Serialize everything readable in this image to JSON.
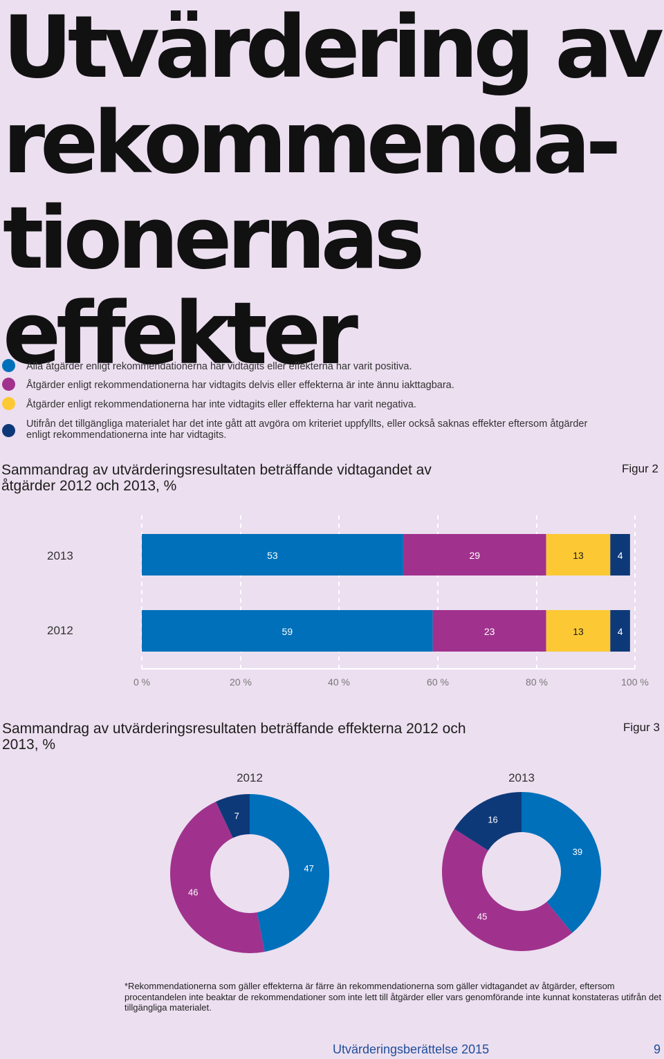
{
  "page": {
    "title_lines": [
      "Utvärdering av",
      "rekommenda-",
      "tionernas",
      "effekter"
    ],
    "footer_title": "Utvärderingsberättelse 2015",
    "page_number": "9"
  },
  "colors": {
    "positive": "#0070ba",
    "partial": "#a0328d",
    "negative": "#fcc934",
    "undetermined": "#0e3979",
    "background": "#ecdff0"
  },
  "legend": [
    {
      "key": "positive",
      "color": "#0070ba",
      "text": "Alla åtgärder enligt rekommendationerna har vidtagits eller effekterna har varit positiva."
    },
    {
      "key": "partial",
      "color": "#a0328d",
      "text": "Åtgärder enligt rekommendationerna har vidtagits delvis eller effekterna är inte ännu iakttagbara."
    },
    {
      "key": "negative",
      "color": "#fcc934",
      "text": "Åtgärder enligt rekommendationerna har inte vidtagits eller effekterna har varit negativa."
    },
    {
      "key": "undetermined",
      "color": "#0e3979",
      "text": "Utifrån det tillgängliga materialet har det inte gått att avgöra om kriteriet uppfyllts, eller också saknas effekter eftersom åtgärder enligt rekommendationerna inte har vidtagits."
    }
  ],
  "figure2": {
    "heading": "Sammandrag av utvärderingsresultaten beträffande vidtagandet av åtgärder 2012 och 2013, %",
    "label": "Figur 2"
  },
  "figure3": {
    "heading": "Sammandrag av utvärderingsresultaten beträffande effekterna 2012 och 2013, %",
    "label": "Figur 3"
  },
  "chart_data": [
    {
      "type": "bar",
      "orientation": "horizontal",
      "stacked": true,
      "title": "Sammandrag av utvärderingsresultaten beträffande vidtagandet av åtgärder 2012 och 2013, %",
      "categories": [
        "2013",
        "2012"
      ],
      "series": [
        {
          "name": "Alla åtgärder enligt rekommendationerna har vidtagits eller effekterna har varit positiva.",
          "color": "#0070ba",
          "values": [
            53,
            59
          ]
        },
        {
          "name": "Åtgärder enligt rekommendationerna har vidtagits delvis eller effekterna är inte ännu iakttagbara.",
          "color": "#a0328d",
          "values": [
            29,
            23
          ]
        },
        {
          "name": "Åtgärder enligt rekommendationerna har inte vidtagits eller effekterna har varit negativa.",
          "color": "#fcc934",
          "values": [
            13,
            13
          ]
        },
        {
          "name": "Utifrån det tillgängliga materialet har det inte gått att avgöra om kriteriet uppfyllts.",
          "color": "#0e3979",
          "values": [
            4,
            4
          ]
        }
      ],
      "xlim": [
        0,
        100
      ],
      "xticks": [
        "0 %",
        "20 %",
        "40 %",
        "60 %",
        "80 %",
        "100 %"
      ],
      "grid": "dashed vertical"
    },
    {
      "type": "pie",
      "variant": "donut",
      "title": "2012",
      "slices": [
        {
          "label": "47",
          "value": 47,
          "color": "#0070ba"
        },
        {
          "label": "46",
          "value": 46,
          "color": "#a0328d"
        },
        {
          "label": "7",
          "value": 7,
          "color": "#0e3979"
        }
      ]
    },
    {
      "type": "pie",
      "variant": "donut",
      "title": "2013",
      "slices": [
        {
          "label": "39",
          "value": 39,
          "color": "#0070ba"
        },
        {
          "label": "45",
          "value": 45,
          "color": "#a0328d"
        },
        {
          "label": "16",
          "value": 16,
          "color": "#0e3979"
        }
      ]
    }
  ],
  "footnote": "*Rekommendationerna som gäller effekterna är färre än rekommendationerna som gäller vidtagandet av åtgärder, eftersom procentandelen inte beaktar de rekommendationer som inte lett till åtgärder eller vars genomförande inte kunnat konstateras utifrån det tillgängliga materialet."
}
